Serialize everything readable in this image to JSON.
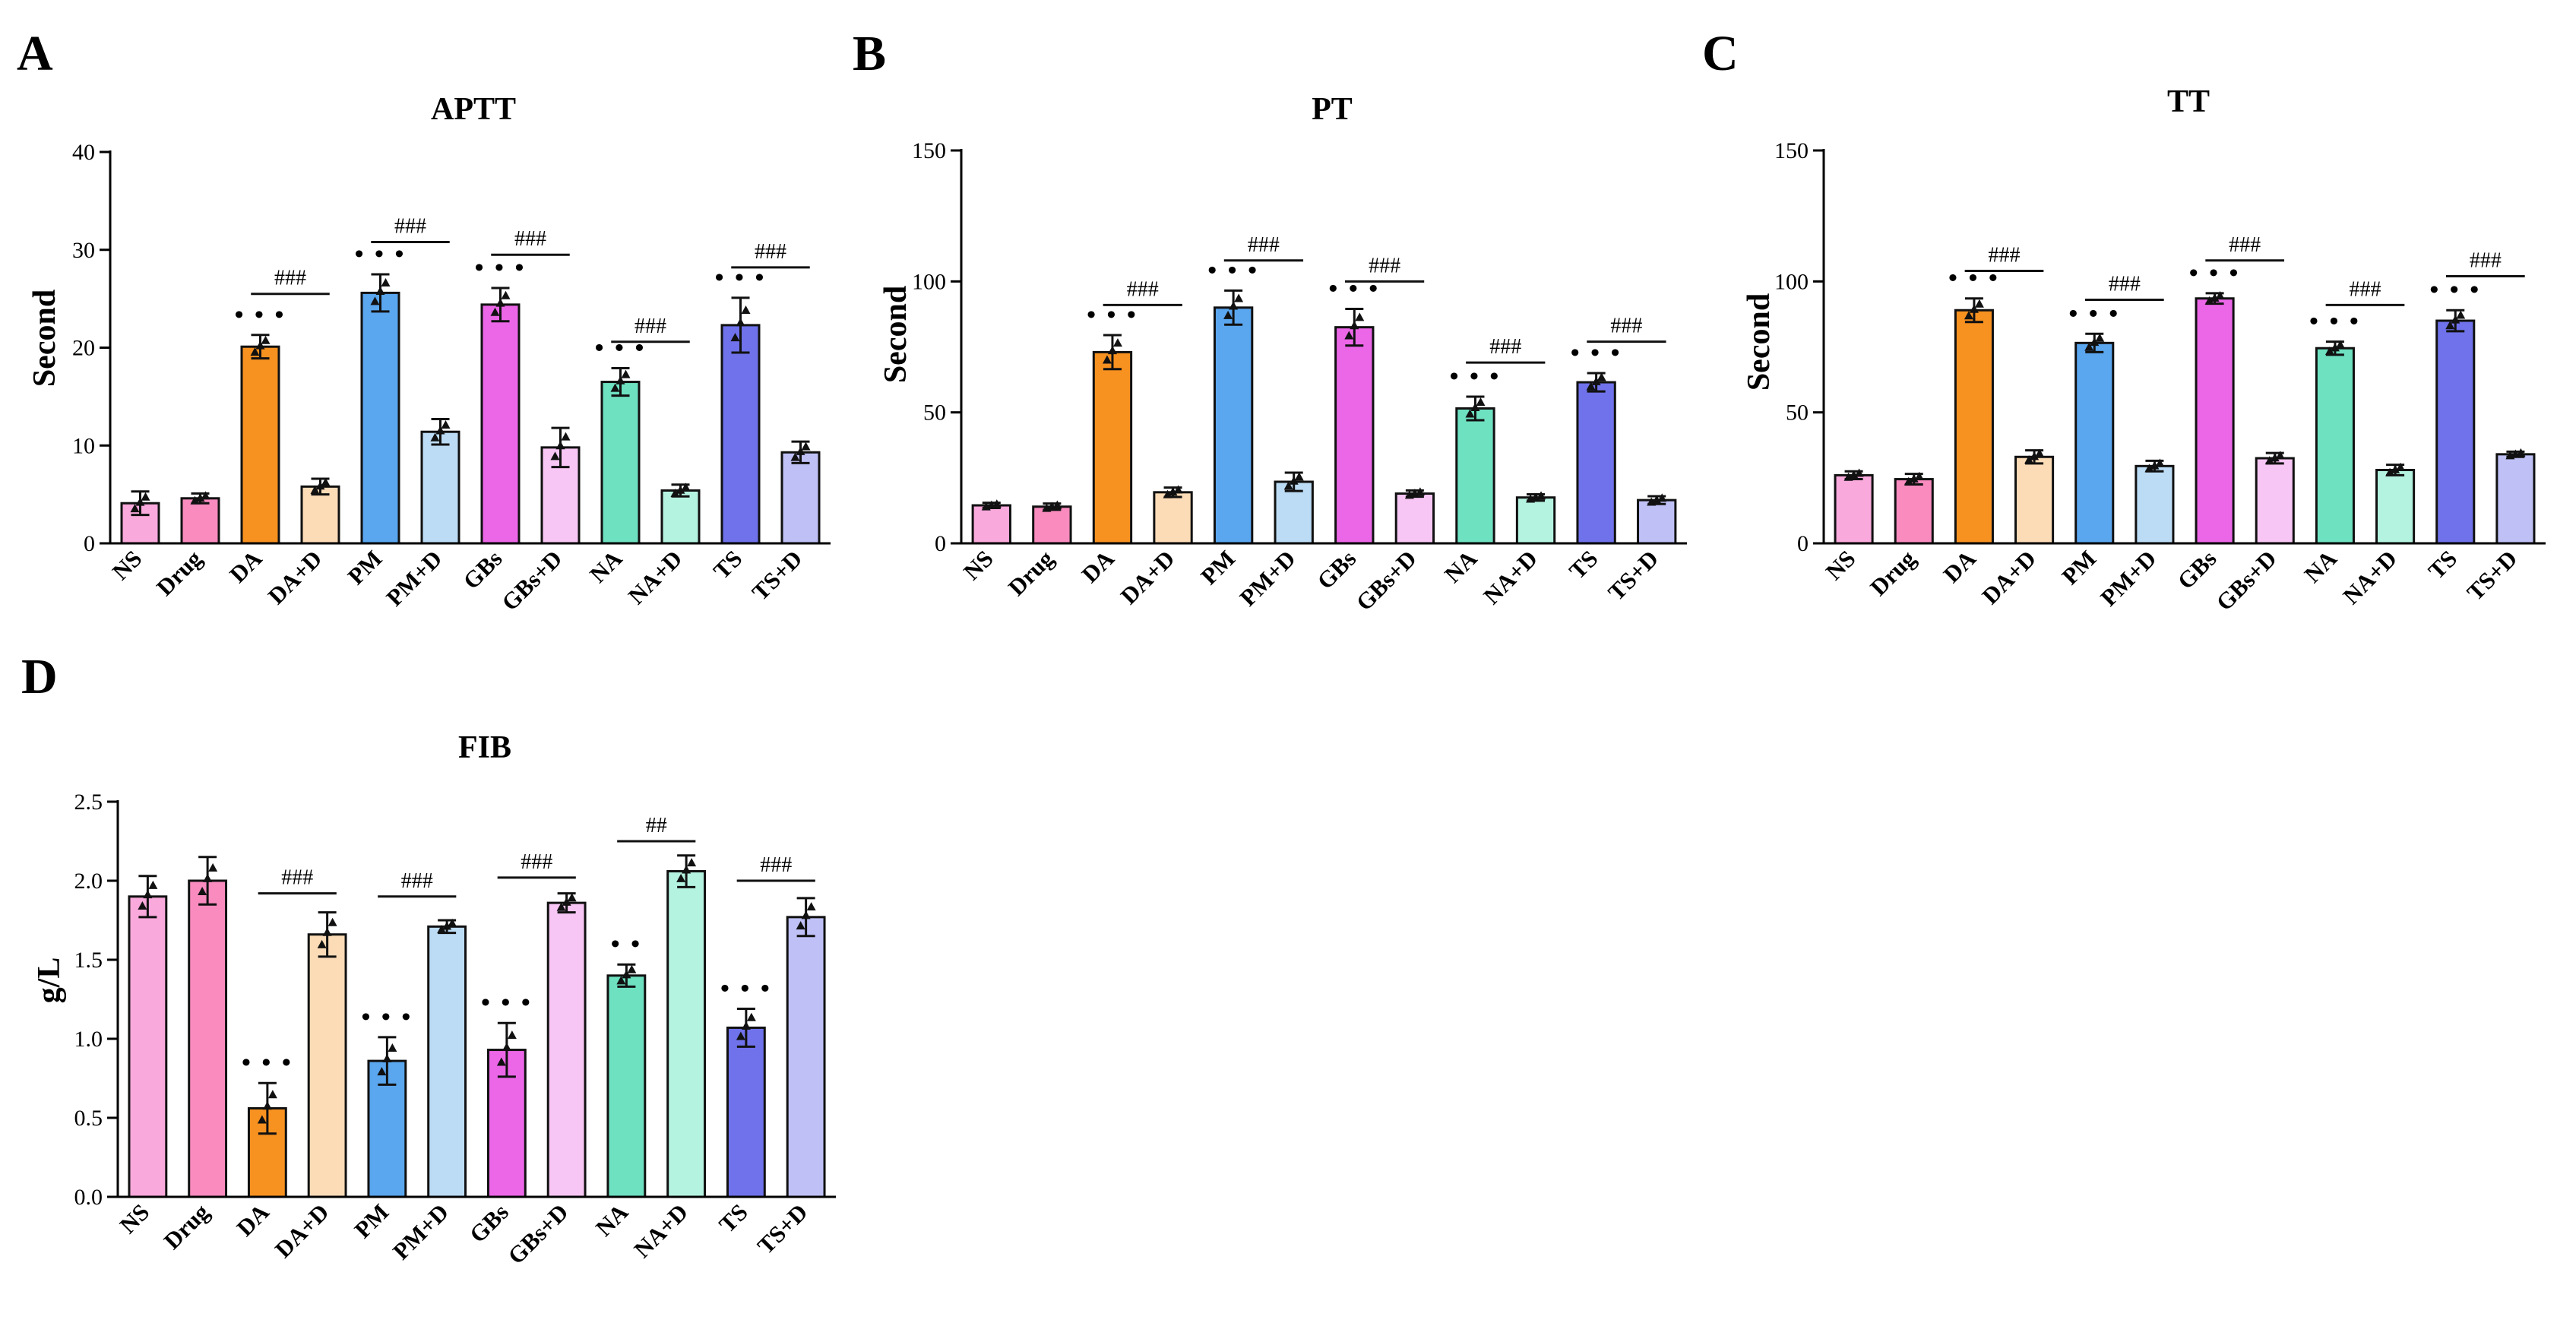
{
  "colors": {
    "NS": "#f9a9dc",
    "Drug": "#f98bbf",
    "DA": "#f79120",
    "DA+D": "#fcdcb7",
    "PM": "#5aa6ef",
    "PM+D": "#bcdcf5",
    "GBs": "#ec67e8",
    "GBs+D": "#f7c6f4",
    "NA": "#6ee1c1",
    "NA+D": "#b5f3e1",
    "TS": "#6f72ea",
    "TS+D": "#bfc1f6"
  },
  "chart_data": [
    {
      "type": "bar",
      "panel": "A",
      "title": "APTT",
      "ylabel": "Second",
      "xlabel": "",
      "ylim": [
        0,
        40
      ],
      "yticks": [
        0,
        10,
        20,
        30,
        40
      ],
      "categories": [
        "NS",
        "Drug",
        "DA",
        "DA+D",
        "PM",
        "PM+D",
        "GBs",
        "GBs+D",
        "NA",
        "NA+D",
        "TS",
        "TS+D"
      ],
      "values": [
        4.1,
        4.6,
        20.1,
        5.8,
        25.6,
        11.4,
        24.4,
        9.8,
        16.5,
        5.4,
        22.3,
        9.3
      ],
      "errors": [
        1.2,
        0.5,
        1.2,
        0.8,
        1.9,
        1.3,
        1.7,
        2.0,
        1.4,
        0.6,
        2.8,
        1.1
      ],
      "stars": [
        {
          "category": "DA",
          "text": "• • •"
        },
        {
          "category": "PM",
          "text": "• • •"
        },
        {
          "category": "GBs",
          "text": "• • •"
        },
        {
          "category": "NA",
          "text": "• • •"
        },
        {
          "category": "TS",
          "text": "• • •"
        }
      ],
      "significance": [
        {
          "from": "DA",
          "to": "DA+D",
          "label": "###",
          "y": 25.5
        },
        {
          "from": "PM",
          "to": "PM+D",
          "label": "###",
          "y": 30.8
        },
        {
          "from": "GBs",
          "to": "GBs+D",
          "label": "###",
          "y": 29.5
        },
        {
          "from": "NA",
          "to": "NA+D",
          "label": "###",
          "y": 20.6
        },
        {
          "from": "TS",
          "to": "TS+D",
          "label": "###",
          "y": 28.2
        }
      ]
    },
    {
      "type": "bar",
      "panel": "B",
      "title": "PT",
      "ylabel": "Second",
      "xlabel": "",
      "ylim": [
        0,
        150
      ],
      "yticks": [
        0,
        50,
        100,
        150
      ],
      "categories": [
        "NS",
        "Drug",
        "DA",
        "DA+D",
        "PM",
        "PM+D",
        "GBs",
        "GBs+D",
        "NA",
        "NA+D",
        "TS",
        "TS+D"
      ],
      "values": [
        14.5,
        14.0,
        73.0,
        19.5,
        90.0,
        23.5,
        82.5,
        19.0,
        51.5,
        17.5,
        61.5,
        16.5
      ],
      "errors": [
        1.0,
        1.2,
        6.5,
        1.8,
        6.5,
        3.5,
        7.0,
        1.2,
        4.5,
        1.2,
        3.5,
        1.5
      ],
      "stars": [
        {
          "category": "DA",
          "text": "• • •"
        },
        {
          "category": "PM",
          "text": "• • •"
        },
        {
          "category": "GBs",
          "text": "• • •"
        },
        {
          "category": "NA",
          "text": "• • •"
        },
        {
          "category": "TS",
          "text": "• • •"
        }
      ],
      "significance": [
        {
          "from": "DA",
          "to": "DA+D",
          "label": "###",
          "y": 91
        },
        {
          "from": "PM",
          "to": "PM+D",
          "label": "###",
          "y": 108
        },
        {
          "from": "GBs",
          "to": "GBs+D",
          "label": "###",
          "y": 100
        },
        {
          "from": "NA",
          "to": "NA+D",
          "label": "###",
          "y": 69
        },
        {
          "from": "TS",
          "to": "TS+D",
          "label": "###",
          "y": 77
        }
      ]
    },
    {
      "type": "bar",
      "panel": "C",
      "title": "TT",
      "ylabel": "Second",
      "xlabel": "",
      "ylim": [
        0,
        150
      ],
      "yticks": [
        0,
        50,
        100,
        150
      ],
      "categories": [
        "NS",
        "Drug",
        "DA",
        "DA+D",
        "PM",
        "PM+D",
        "GBs",
        "GBs+D",
        "NA",
        "NA+D",
        "TS",
        "TS+D"
      ],
      "values": [
        26.0,
        24.5,
        89.0,
        33.0,
        76.5,
        29.5,
        93.5,
        32.5,
        74.5,
        28.0,
        85.0,
        34.0
      ],
      "errors": [
        1.5,
        2.0,
        4.5,
        2.5,
        3.5,
        2.0,
        2.0,
        2.0,
        2.5,
        2.0,
        4.0,
        1.0
      ],
      "stars": [
        {
          "category": "DA",
          "text": "• • •"
        },
        {
          "category": "PM",
          "text": "• • •"
        },
        {
          "category": "GBs",
          "text": "• • •"
        },
        {
          "category": "NA",
          "text": "• • •"
        },
        {
          "category": "TS",
          "text": "• • •"
        }
      ],
      "significance": [
        {
          "from": "DA",
          "to": "DA+D",
          "label": "###",
          "y": 104
        },
        {
          "from": "PM",
          "to": "PM+D",
          "label": "###",
          "y": 93
        },
        {
          "from": "GBs",
          "to": "GBs+D",
          "label": "###",
          "y": 108
        },
        {
          "from": "NA",
          "to": "NA+D",
          "label": "###",
          "y": 91
        },
        {
          "from": "TS",
          "to": "TS+D",
          "label": "###",
          "y": 102
        }
      ]
    },
    {
      "type": "bar",
      "panel": "D",
      "title": "FIB",
      "ylabel": "g/L",
      "xlabel": "",
      "ylim": [
        0,
        2.5
      ],
      "yticks": [
        "0.0",
        "0.5",
        "1.0",
        "1.5",
        "2.0",
        "2.5"
      ],
      "categories": [
        "NS",
        "Drug",
        "DA",
        "DA+D",
        "PM",
        "PM+D",
        "GBs",
        "GBs+D",
        "NA",
        "NA+D",
        "TS",
        "TS+D"
      ],
      "values": [
        1.9,
        2.0,
        0.56,
        1.66,
        0.86,
        1.71,
        0.93,
        1.86,
        1.4,
        2.06,
        1.07,
        1.77
      ],
      "errors": [
        0.13,
        0.15,
        0.16,
        0.14,
        0.15,
        0.04,
        0.17,
        0.06,
        0.07,
        0.1,
        0.12,
        0.12
      ],
      "stars": [
        {
          "category": "DA",
          "text": "• • •"
        },
        {
          "category": "PM",
          "text": "• • •"
        },
        {
          "category": "GBs",
          "text": "• • •"
        },
        {
          "category": "NA",
          "text": "• •"
        },
        {
          "category": "TS",
          "text": "• • •"
        }
      ],
      "significance": [
        {
          "from": "DA",
          "to": "DA+D",
          "label": "###",
          "y": 1.92
        },
        {
          "from": "PM",
          "to": "PM+D",
          "label": "###",
          "y": 1.9
        },
        {
          "from": "GBs",
          "to": "GBs+D",
          "label": "###",
          "y": 2.02
        },
        {
          "from": "NA",
          "to": "NA+D",
          "label": "##",
          "y": 2.25
        },
        {
          "from": "TS",
          "to": "TS+D",
          "label": "###",
          "y": 2.0
        }
      ]
    }
  ]
}
